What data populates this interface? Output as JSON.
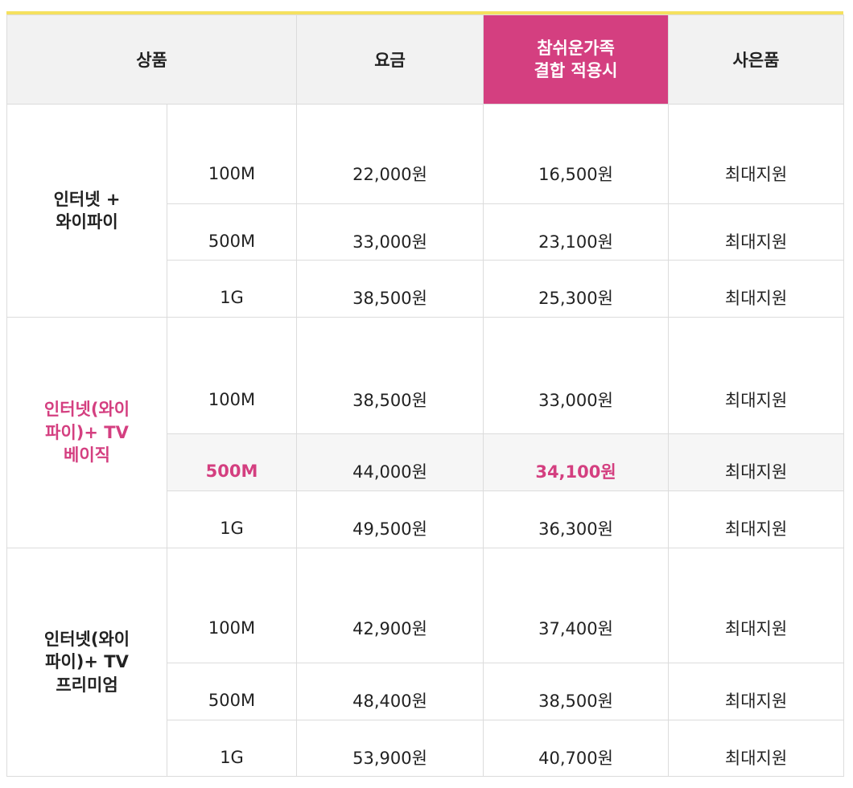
{
  "header": {
    "product": "상품",
    "fee": "요금",
    "discount_line1": "참쉬운가족",
    "discount_line2": "결합 적용시",
    "gift": "사은품"
  },
  "colors": {
    "accent_pink": "#d43f80",
    "top_bar_yellow": "#f5e15f"
  },
  "groups": [
    {
      "name_line1": "인터넷 +",
      "name_line2": "와이파이",
      "name_line3": "",
      "rows": [
        {
          "speed": "100M",
          "fee": "22,000원",
          "discount": "16,500원",
          "gift": "최대지원"
        },
        {
          "speed": "500M",
          "fee": "33,000원",
          "discount": "23,100원",
          "gift": "최대지원"
        },
        {
          "speed": "1G",
          "fee": "38,500원",
          "discount": "25,300원",
          "gift": "최대지원"
        }
      ]
    },
    {
      "name_line1": "인터넷(와이",
      "name_line2": "파이)+ TV",
      "name_line3": "베이직",
      "rows": [
        {
          "speed": "100M",
          "fee": "38,500원",
          "discount": "33,000원",
          "gift": "최대지원"
        },
        {
          "speed": "500M",
          "fee": "44,000원",
          "discount": "34,100원",
          "gift": "최대지원"
        },
        {
          "speed": "1G",
          "fee": "49,500원",
          "discount": "36,300원",
          "gift": "최대지원"
        }
      ]
    },
    {
      "name_line1": "인터넷(와이",
      "name_line2": "파이)+ TV",
      "name_line3": "프리미엄",
      "rows": [
        {
          "speed": "100M",
          "fee": "42,900원",
          "discount": "37,400원",
          "gift": "최대지원"
        },
        {
          "speed": "500M",
          "fee": "48,400원",
          "discount": "38,500원",
          "gift": "최대지원"
        },
        {
          "speed": "1G",
          "fee": "53,900원",
          "discount": "40,700원",
          "gift": "최대지원"
        }
      ]
    }
  ]
}
